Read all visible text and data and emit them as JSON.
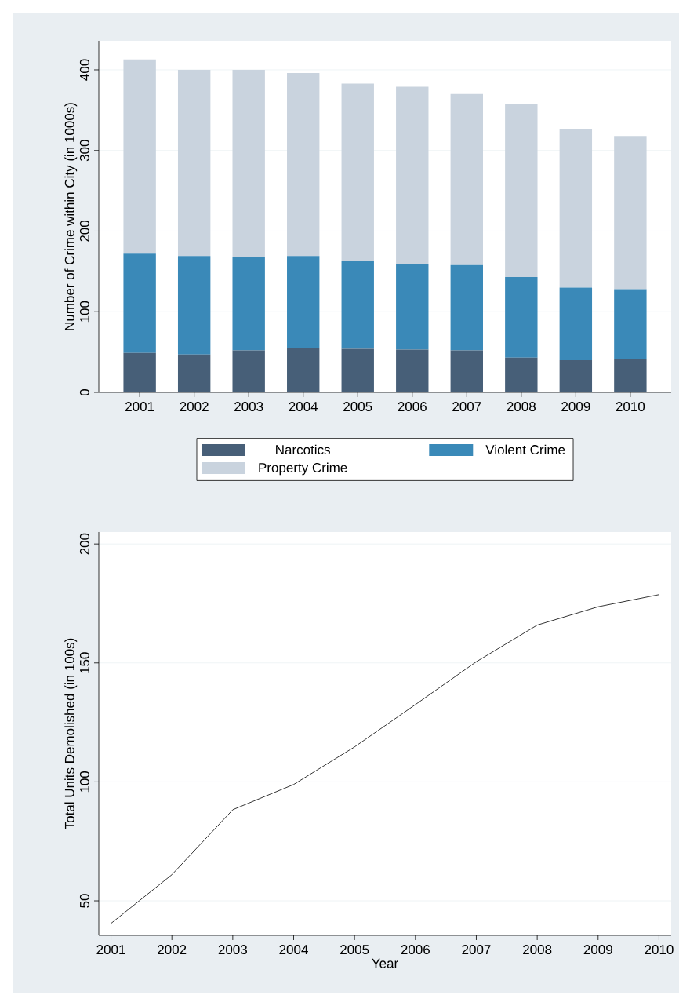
{
  "chart_data": [
    {
      "type": "bar",
      "stacked": true,
      "ylabel": "Number of Crime within City (in 1000s)",
      "categories": [
        "2001",
        "2002",
        "2003",
        "2004",
        "2005",
        "2006",
        "2007",
        "2008",
        "2009",
        "2010"
      ],
      "series": [
        {
          "name": "Narcotics",
          "color": "#475f78",
          "values": [
            49,
            47,
            52,
            55,
            54,
            53,
            52,
            43,
            40,
            41
          ]
        },
        {
          "name": "Violent Crime",
          "color": "#3a89b8",
          "values": [
            123,
            122,
            116,
            114,
            109,
            106,
            106,
            100,
            90,
            87
          ]
        },
        {
          "name": "Property Crime",
          "color": "#c9d3de",
          "values": [
            241,
            231,
            232,
            227,
            220,
            220,
            212,
            215,
            197,
            190
          ]
        }
      ],
      "ylim": [
        0,
        436
      ],
      "yticks": [
        0,
        100,
        200,
        300,
        400
      ],
      "grid": "y",
      "legend": "bottom"
    },
    {
      "type": "line",
      "xlabel": "Year",
      "ylabel": "Total Units Demolished (in 100s)",
      "x": [
        2001,
        2002,
        2003,
        2004,
        2005,
        2006,
        2007,
        2008,
        2009,
        2010
      ],
      "series": [
        {
          "color": "#000000",
          "values": [
            40.5,
            61,
            88.3,
            98.9,
            114.7,
            132.5,
            150.5,
            165.9,
            173.6,
            178.7
          ]
        }
      ],
      "xlim": [
        2000.8,
        2010.2
      ],
      "ylim": [
        35.5,
        205
      ],
      "xticks": [
        2001,
        2002,
        2003,
        2004,
        2005,
        2006,
        2007,
        2008,
        2009,
        2010
      ],
      "yticks": [
        50,
        100,
        150,
        200
      ],
      "grid": "y"
    }
  ]
}
